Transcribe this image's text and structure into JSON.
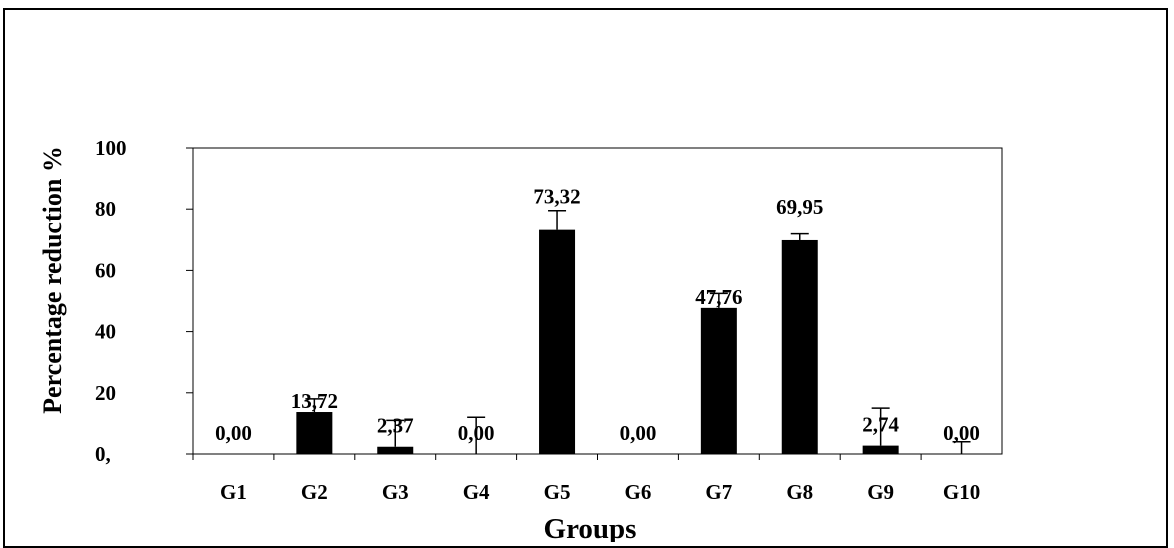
{
  "chart_data": {
    "type": "bar",
    "title": "",
    "xlabel": "Groups",
    "ylabel": "Percentage reduction %",
    "categories": [
      "G1",
      "G2",
      "G3",
      "G4",
      "G5",
      "G6",
      "G7",
      "G8",
      "G9",
      "G10"
    ],
    "values": [
      0.0,
      13.72,
      2.37,
      0.0,
      73.32,
      0.0,
      47.76,
      69.95,
      2.74,
      0.0
    ],
    "error_upper": [
      0.0,
      18.0,
      11.0,
      12.0,
      79.5,
      0.0,
      52.5,
      72.0,
      15.0,
      4.0
    ],
    "data_labels": [
      "0,00",
      "13,72",
      "2,37",
      "0,00",
      "73,32",
      "0,00",
      "47,76",
      "69,95",
      "2,74",
      "0,00"
    ],
    "y_ticks": [
      0,
      20,
      40,
      60,
      80,
      100
    ],
    "y_tick_labels": [
      "0,",
      "20",
      "40",
      "60",
      "80",
      "100"
    ],
    "ylim": [
      0,
      100
    ],
    "grid": false,
    "bar_color": "#000000"
  }
}
